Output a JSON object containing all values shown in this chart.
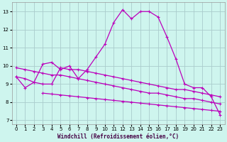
{
  "xlabel": "Windchill (Refroidissement éolien,°C)",
  "background_color": "#cef5ee",
  "line_color": "#bb00bb",
  "grid_color": "#aacccc",
  "ylim": [
    6.8,
    13.5
  ],
  "xlim": [
    -0.5,
    23.5
  ],
  "yticks": [
    7,
    8,
    9,
    10,
    11,
    12,
    13
  ],
  "xticks": [
    0,
    1,
    2,
    3,
    4,
    5,
    6,
    7,
    8,
    9,
    10,
    11,
    12,
    13,
    14,
    15,
    16,
    17,
    18,
    19,
    20,
    21,
    22,
    23
  ],
  "curves": [
    {
      "x": [
        0,
        1,
        2,
        3,
        4,
        5,
        6,
        7,
        8,
        9,
        10,
        11,
        12,
        13,
        14,
        15,
        16,
        17,
        18,
        19,
        20,
        21,
        22,
        23
      ],
      "y": [
        9.4,
        8.8,
        9.1,
        10.1,
        10.2,
        9.8,
        10.0,
        9.3,
        9.8,
        10.5,
        11.2,
        12.4,
        13.1,
        12.6,
        13.0,
        13.0,
        12.7,
        11.6,
        10.4,
        9.0,
        8.8,
        8.8,
        8.3,
        7.3
      ]
    },
    {
      "x": [
        0,
        1,
        2,
        3,
        4,
        5,
        6,
        7,
        8,
        9,
        10,
        11,
        12,
        13,
        14,
        15,
        16,
        17,
        18,
        19,
        20,
        21,
        22,
        23
      ],
      "y": [
        9.9,
        9.8,
        9.7,
        9.6,
        9.5,
        9.5,
        9.4,
        9.3,
        9.2,
        9.1,
        9.0,
        8.9,
        8.8,
        8.7,
        8.6,
        8.5,
        8.5,
        8.4,
        8.3,
        8.2,
        8.2,
        8.1,
        8.0,
        7.9
      ]
    },
    {
      "x": [
        0,
        1,
        2,
        3,
        4,
        5,
        6,
        7,
        8,
        9,
        10,
        11,
        12,
        13,
        14,
        15,
        16,
        17,
        18,
        19,
        20,
        21,
        22,
        23
      ],
      "y": [
        9.4,
        9.3,
        9.1,
        9.0,
        9.0,
        9.9,
        9.8,
        9.8,
        9.7,
        9.6,
        9.5,
        9.4,
        9.3,
        9.2,
        9.1,
        9.0,
        8.9,
        8.8,
        8.7,
        8.7,
        8.6,
        8.5,
        8.4,
        8.3
      ]
    },
    {
      "x": [
        3,
        4,
        5,
        6,
        7,
        8,
        9,
        10,
        11,
        12,
        13,
        14,
        15,
        16,
        17,
        18,
        19,
        20,
        21,
        22,
        23
      ],
      "y": [
        8.5,
        8.45,
        8.4,
        8.35,
        8.3,
        8.25,
        8.2,
        8.15,
        8.1,
        8.05,
        8.0,
        7.95,
        7.9,
        7.85,
        7.8,
        7.75,
        7.7,
        7.65,
        7.6,
        7.55,
        7.5
      ]
    }
  ]
}
